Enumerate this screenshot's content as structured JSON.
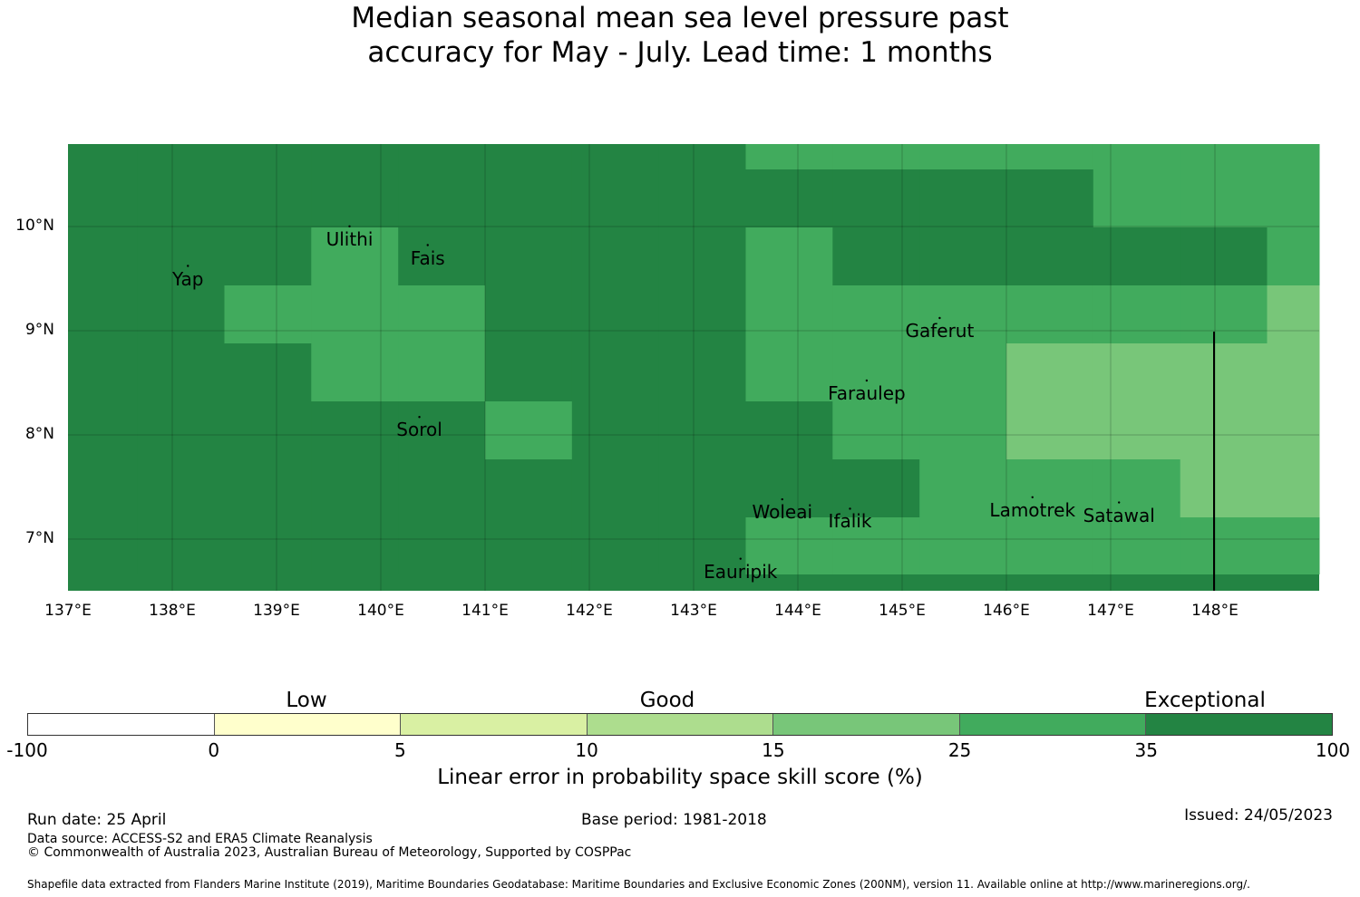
{
  "title_line1": "Median seasonal mean sea level pressure past",
  "title_line2": "accuracy for May - July. Lead time: 1 months",
  "map": {
    "lat_labels": [
      {
        "text": "10°N",
        "lat": 10
      },
      {
        "text": "9°N",
        "lat": 9
      },
      {
        "text": "8°N",
        "lat": 8
      },
      {
        "text": "7°N",
        "lat": 7
      }
    ],
    "lon_labels": [
      {
        "text": "137°E",
        "lon": 137
      },
      {
        "text": "138°E",
        "lon": 138
      },
      {
        "text": "139°E",
        "lon": 139
      },
      {
        "text": "140°E",
        "lon": 140
      },
      {
        "text": "141°E",
        "lon": 141
      },
      {
        "text": "142°E",
        "lon": 142
      },
      {
        "text": "143°E",
        "lon": 143
      },
      {
        "text": "144°E",
        "lon": 144
      },
      {
        "text": "145°E",
        "lon": 145
      },
      {
        "text": "146°E",
        "lon": 146
      },
      {
        "text": "147°E",
        "lon": 147
      },
      {
        "text": "148°E",
        "lon": 148
      }
    ],
    "places": [
      {
        "name": "Yap",
        "lon": 138.15,
        "lat": 9.5
      },
      {
        "name": "Ulithi",
        "lon": 139.7,
        "lat": 9.88
      },
      {
        "name": "Fais",
        "lon": 140.45,
        "lat": 9.7
      },
      {
        "name": "Sorol",
        "lon": 140.37,
        "lat": 8.05
      },
      {
        "name": "Gaferut",
        "lon": 145.36,
        "lat": 9.0
      },
      {
        "name": "Faraulep",
        "lon": 144.66,
        "lat": 8.4
      },
      {
        "name": "Woleai",
        "lon": 143.85,
        "lat": 7.26
      },
      {
        "name": "Ifalik",
        "lon": 144.5,
        "lat": 7.17
      },
      {
        "name": "Lamotrek",
        "lon": 146.25,
        "lat": 7.28
      },
      {
        "name": "Satawal",
        "lon": 147.08,
        "lat": 7.23
      },
      {
        "name": "Eauripik",
        "lon": 143.45,
        "lat": 6.69
      }
    ],
    "grid_rows_skill_class": [
      [
        6,
        6,
        6,
        6,
        6,
        6,
        6,
        6,
        5,
        5,
        5,
        5,
        5,
        5,
        5
      ],
      [
        6,
        6,
        6,
        6,
        6,
        6,
        6,
        6,
        6,
        6,
        6,
        6,
        5,
        5,
        5
      ],
      [
        6,
        6,
        6,
        5,
        6,
        6,
        6,
        6,
        5,
        6,
        6,
        6,
        6,
        6,
        5
      ],
      [
        6,
        6,
        5,
        5,
        5,
        6,
        6,
        6,
        5,
        5,
        5,
        5,
        5,
        5,
        4
      ],
      [
        6,
        6,
        6,
        5,
        5,
        6,
        6,
        6,
        5,
        5,
        5,
        4,
        4,
        4,
        4
      ],
      [
        6,
        6,
        6,
        6,
        6,
        5,
        6,
        6,
        6,
        5,
        5,
        4,
        4,
        4,
        4
      ],
      [
        6,
        6,
        6,
        6,
        6,
        6,
        6,
        6,
        6,
        6,
        5,
        5,
        5,
        4,
        4
      ],
      [
        6,
        6,
        6,
        6,
        6,
        6,
        6,
        6,
        5,
        5,
        5,
        5,
        5,
        5,
        5
      ]
    ]
  },
  "colorbar": {
    "categories": [
      "Low",
      "Good",
      "Exceptional"
    ],
    "ticks": [
      "-100",
      "0",
      "5",
      "10",
      "15",
      "25",
      "35",
      "100"
    ],
    "colors": [
      "#ffffff",
      "#ffffcc",
      "#d9f0a3",
      "#addd8e",
      "#78c679",
      "#41ab5d",
      "#238443"
    ],
    "label": "Linear error in probability space skill score (%)"
  },
  "footer": {
    "run_date": "Run date: 25 April",
    "base_period": "Base period: 1981-2018",
    "issued": "Issued: 24/05/2023",
    "data_source": "Data source: ACCESS-S2 and ERA5 Climate Reanalysis",
    "copyright": "© Commonwealth of Australia 2023, Australian Bureau of Meteorology, Supported by COSPPac",
    "shapefile": "Shapefile data extracted from Flanders Marine Institute (2019), Maritime Boundaries Geodatabase: Maritime Boundaries and Exclusive Economic Zones (200NM), version 11. Available online at http://www.marineregions.org/."
  }
}
